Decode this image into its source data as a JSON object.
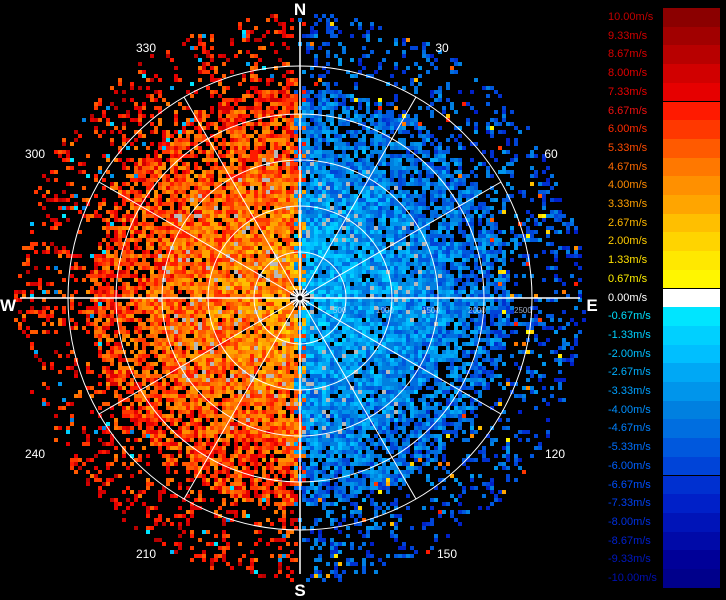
{
  "compass": {
    "north": "N",
    "south": "S",
    "east": "E",
    "west": "W"
  },
  "azimuth_labels": [
    "30",
    "60",
    "120",
    "150",
    "210",
    "240",
    "300",
    "330"
  ],
  "range_labels": [
    "500",
    "1000",
    "1500",
    "2000",
    "2500"
  ],
  "colors": {
    "positive_max": "#8b0000",
    "zero": "#ffffff",
    "negative_max": "#00008b",
    "grid": "#ffffff"
  },
  "colorbar": [
    {
      "label": "10.00m/s",
      "color": "#8b0000",
      "text_color": "#c00000"
    },
    {
      "label": "9.33m/s",
      "color": "#a10000",
      "text_color": "#d00000"
    },
    {
      "label": "8.67m/s",
      "color": "#b80000",
      "text_color": "#d80000"
    },
    {
      "label": "8.00m/s",
      "color": "#d10000",
      "text_color": "#e00000"
    },
    {
      "label": "7.33m/s",
      "color": "#e60000",
      "text_color": "#e80000"
    },
    {
      "label": "6.67m/s",
      "color": "#ff1a00",
      "text_color": "#f01010"
    },
    {
      "label": "6.00m/s",
      "color": "#ff3800",
      "text_color": "#ff2a00"
    },
    {
      "label": "5.33m/s",
      "color": "#ff5a00",
      "text_color": "#ff4a00"
    },
    {
      "label": "4.67m/s",
      "color": "#ff7800",
      "text_color": "#ff6a00"
    },
    {
      "label": "4.00m/s",
      "color": "#ff9000",
      "text_color": "#ff8a00"
    },
    {
      "label": "3.33m/s",
      "color": "#ffa500",
      "text_color": "#ffa000"
    },
    {
      "label": "2.67m/s",
      "color": "#ffbf00",
      "text_color": "#ffb800"
    },
    {
      "label": "2.00m/s",
      "color": "#ffd400",
      "text_color": "#ffcc00"
    },
    {
      "label": "1.33m/s",
      "color": "#ffe800",
      "text_color": "#ffe000"
    },
    {
      "label": "0.67m/s",
      "color": "#fff600",
      "text_color": "#fff000"
    },
    {
      "label": "0.00m/s",
      "color": "#ffffff",
      "text_color": "#ffffff"
    },
    {
      "label": "-0.67m/s",
      "color": "#00e5ff",
      "text_color": "#00e0ff"
    },
    {
      "label": "-1.33m/s",
      "color": "#00d0ff",
      "text_color": "#00d0ff"
    },
    {
      "label": "-2.00m/s",
      "color": "#00bfff",
      "text_color": "#00c0ff"
    },
    {
      "label": "-2.67m/s",
      "color": "#00a8f5",
      "text_color": "#00b0ff"
    },
    {
      "label": "-3.33m/s",
      "color": "#0095eb",
      "text_color": "#00a0ff"
    },
    {
      "label": "-4.00m/s",
      "color": "#0080e0",
      "text_color": "#0090ff"
    },
    {
      "label": "-4.67m/s",
      "color": "#006ee0",
      "text_color": "#0080ff"
    },
    {
      "label": "-5.33m/s",
      "color": "#0058dd",
      "text_color": "#0070ff"
    },
    {
      "label": "-6.00m/s",
      "color": "#0044d8",
      "text_color": "#0060ff"
    },
    {
      "label": "-6.67m/s",
      "color": "#0030d0",
      "text_color": "#0050ff"
    },
    {
      "label": "-7.33m/s",
      "color": "#0020c8",
      "text_color": "#0040f0"
    },
    {
      "label": "-8.00m/s",
      "color": "#0014b8",
      "text_color": "#0030e0"
    },
    {
      "label": "-8.67m/s",
      "color": "#000aa8",
      "text_color": "#0020d0"
    },
    {
      "label": "-9.33m/s",
      "color": "#000098",
      "text_color": "#0018c0"
    },
    {
      "label": "-10.00m/s",
      "color": "#00008b",
      "text_color": "#0010b0"
    }
  ]
}
